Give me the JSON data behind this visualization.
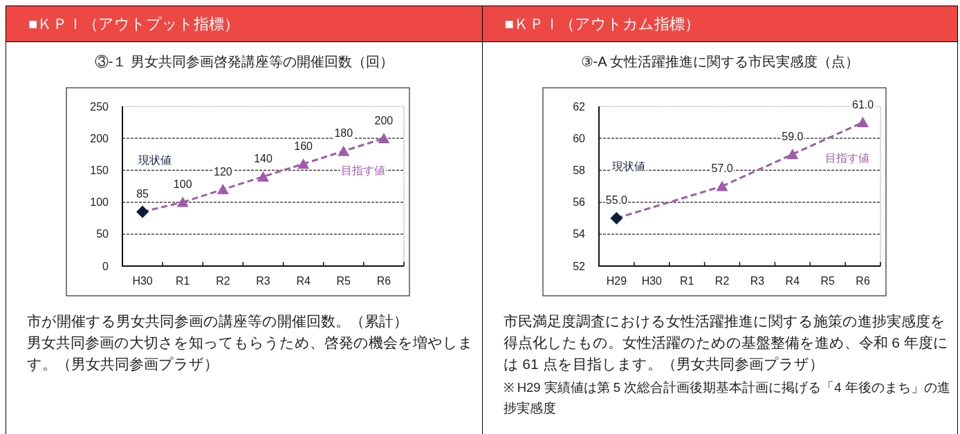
{
  "chart_data": [
    {
      "type": "line",
      "title": "■ＫＰＩ（アウトプット指標）",
      "subtitle": "③-１ 男女共同参画啓発講座等の開催回数（回）",
      "categories": [
        "H30",
        "R1",
        "R2",
        "R3",
        "R4",
        "R5",
        "R6"
      ],
      "series": [
        {
          "type": "line",
          "x": [
            "H30",
            "R1"
          ],
          "values": [
            85,
            100
          ],
          "color": "#a05aab",
          "line_style": "dashed"
        },
        {
          "type": "line",
          "name": "目指す値",
          "x": [
            "R1",
            "R2",
            "R3",
            "R4",
            "R5",
            "R6"
          ],
          "values": [
            100,
            120,
            140,
            160,
            180,
            200
          ],
          "color": "#a05aab",
          "marker": "triangle",
          "line_style": "dashed",
          "value_labels": [
            "100",
            "120",
            "140",
            "160",
            "180",
            "200"
          ]
        },
        {
          "type": "scatter",
          "name": "現状値",
          "x": [
            "H30"
          ],
          "values": [
            85
          ],
          "color": "#0b1d3a",
          "marker": "diamond",
          "value_labels": [
            "85"
          ]
        }
      ],
      "ylim": [
        0,
        250
      ],
      "yticks": [
        0,
        50,
        100,
        150,
        200,
        250
      ],
      "grid": "y",
      "annotations": [
        "市が開催する男女共同参画の講座等の開催回数。（累計）",
        "男女共同参画の大切さを知ってもらうため、啓発の機会を増やします。（男女共同参画プラザ）"
      ]
    },
    {
      "type": "line",
      "title": "■ＫＰＩ（アウトカム指標）",
      "subtitle": "③-A 女性活躍推進に関する市民実感度（点）",
      "categories": [
        "H29",
        "H30",
        "R1",
        "R2",
        "R3",
        "R4",
        "R5",
        "R6"
      ],
      "series": [
        {
          "type": "line",
          "x": [
            "H29",
            "R2"
          ],
          "values": [
            55,
            57
          ],
          "color": "#a05aab",
          "line_style": "dashed"
        },
        {
          "type": "line",
          "name": "目指す値",
          "x": [
            "R2",
            "R4",
            "R6"
          ],
          "values": [
            57,
            59,
            61
          ],
          "color": "#a05aab",
          "marker": "triangle",
          "line_style": "dashed",
          "value_labels": [
            "57.0",
            "59.0",
            "61.0"
          ]
        },
        {
          "type": "scatter",
          "name": "現状値",
          "x": [
            "H29"
          ],
          "values": [
            55
          ],
          "color": "#0b1d3a",
          "marker": "diamond",
          "value_labels": [
            "55.0"
          ]
        }
      ],
      "ylim": [
        52,
        62
      ],
      "yticks": [
        52,
        54,
        56,
        58,
        60,
        62
      ],
      "grid": "y",
      "annotations": [
        "市民満足度調査における女性活躍推進に関する施策の進捗実感度を得点化したもの。女性活躍のための基盤整備を進め、令和 6 年度には 61 点を目指します。（男女共同参画プラザ）",
        "※ H29 実績値は第 5 次総合計画後期基本計画に掲げる「4 年後のまち」の進捗実感度"
      ]
    }
  ]
}
